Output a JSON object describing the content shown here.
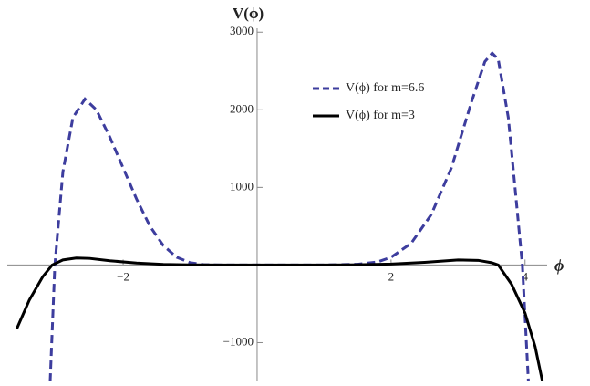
{
  "chart_data": {
    "type": "line",
    "y_axis_label": "V(ϕ)",
    "x_axis_label": "ϕ",
    "xlim": [
      -3.73,
      4.33
    ],
    "ylim": [
      -1500,
      3050
    ],
    "xticks": [
      {
        "value": -2,
        "label": "−2"
      },
      2,
      4
    ],
    "yticks": [
      {
        "value": -1000,
        "label": "−1000"
      },
      1000,
      2000,
      3000
    ],
    "legend": "upper right",
    "series": [
      {
        "name": "V(ϕ) for m=6.6",
        "color": "#3d3d9e",
        "dashed": true,
        "x": [
          -3.09,
          -3.02,
          -2.9,
          -2.75,
          -2.57,
          -2.4,
          -2.2,
          -2.0,
          -1.8,
          -1.6,
          -1.4,
          -1.2,
          -1.0,
          -0.8,
          -0.5,
          0,
          0.5,
          1.0,
          1.5,
          1.8,
          2.0,
          2.3,
          2.6,
          2.9,
          3.2,
          3.4,
          3.51,
          3.6,
          3.75,
          3.85,
          3.96,
          4.05
        ],
        "values": [
          -1500,
          0,
          1200,
          1900,
          2140,
          2000,
          1650,
          1250,
          850,
          500,
          250,
          100,
          30,
          5,
          0,
          0,
          0,
          0,
          10,
          40,
          100,
          280,
          650,
          1250,
          2100,
          2620,
          2730,
          2650,
          1900,
          1000,
          0,
          -1500
        ]
      },
      {
        "name": "V(ϕ) for m=3",
        "color": "#000000",
        "dashed": false,
        "x": [
          -3.59,
          -3.4,
          -3.2,
          -3.06,
          -2.9,
          -2.7,
          -2.5,
          -2.2,
          -1.8,
          -1.4,
          -1.0,
          -0.5,
          0,
          0.5,
          1.0,
          1.5,
          2.0,
          2.5,
          3.0,
          3.3,
          3.5,
          3.6,
          3.8,
          4.0,
          4.15,
          4.26
        ],
        "values": [
          -824,
          -450,
          -150,
          0,
          65,
          90,
          85,
          55,
          25,
          8,
          2,
          0,
          0,
          0,
          0,
          3,
          12,
          35,
          65,
          60,
          30,
          0,
          -250,
          -620,
          -1050,
          -1500
        ]
      }
    ]
  }
}
